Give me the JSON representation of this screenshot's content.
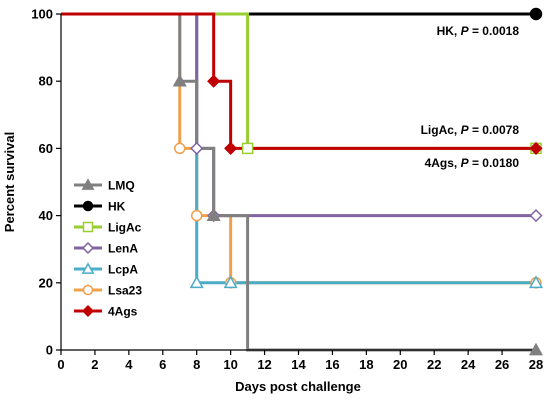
{
  "chart_data": {
    "type": "line",
    "step": true,
    "xlabel": "Days post challenge",
    "ylabel": "Percent survival",
    "xlim": [
      0,
      28
    ],
    "ylim": [
      0,
      100
    ],
    "xticks": [
      0,
      2,
      4,
      6,
      8,
      10,
      12,
      14,
      16,
      18,
      20,
      22,
      24,
      26,
      28
    ],
    "yticks": [
      0,
      20,
      40,
      60,
      80,
      100
    ],
    "grid": false,
    "legend_position": "bottom-left",
    "series": [
      {
        "name": "LMQ",
        "color": "#808080",
        "marker": "triangle",
        "filled": true,
        "points": [
          [
            0,
            100
          ],
          [
            7,
            100
          ],
          [
            7,
            80
          ],
          [
            8,
            80
          ],
          [
            8,
            60
          ],
          [
            9,
            60
          ],
          [
            9,
            40
          ],
          [
            11,
            40
          ],
          [
            11,
            0
          ],
          [
            28,
            0
          ]
        ],
        "marks": [
          [
            7,
            80
          ],
          [
            9,
            40
          ],
          [
            28,
            0
          ]
        ]
      },
      {
        "name": "HK",
        "color": "#000000",
        "marker": "circle",
        "filled": true,
        "points": [
          [
            0,
            100
          ],
          [
            28,
            100
          ]
        ],
        "marks": [
          [
            28,
            100
          ]
        ]
      },
      {
        "name": "LigAc",
        "color": "#9ACD32",
        "marker": "square",
        "filled": false,
        "points": [
          [
            0,
            100
          ],
          [
            11,
            100
          ],
          [
            11,
            60
          ],
          [
            28,
            60
          ]
        ],
        "marks": [
          [
            11,
            60
          ],
          [
            28,
            60
          ]
        ]
      },
      {
        "name": "LenA",
        "color": "#8064A2",
        "marker": "diamond",
        "filled": false,
        "points": [
          [
            0,
            100
          ],
          [
            8,
            100
          ],
          [
            8,
            60
          ],
          [
            9,
            60
          ],
          [
            9,
            40
          ],
          [
            28,
            40
          ]
        ],
        "marks": [
          [
            8,
            60
          ],
          [
            9,
            40
          ],
          [
            28,
            40
          ]
        ]
      },
      {
        "name": "LcpA",
        "color": "#4BACC6",
        "marker": "triangle",
        "filled": false,
        "points": [
          [
            0,
            100
          ],
          [
            8,
            100
          ],
          [
            8,
            20
          ],
          [
            10,
            20
          ],
          [
            28,
            20
          ]
        ],
        "marks": [
          [
            8,
            20
          ],
          [
            10,
            20
          ],
          [
            28,
            20
          ]
        ]
      },
      {
        "name": "Lsa23",
        "color": "#F0A04B",
        "marker": "circle",
        "filled": false,
        "points": [
          [
            0,
            100
          ],
          [
            7,
            100
          ],
          [
            7,
            60
          ],
          [
            8,
            60
          ],
          [
            8,
            40
          ],
          [
            10,
            40
          ],
          [
            10,
            20
          ],
          [
            28,
            20
          ]
        ],
        "marks": [
          [
            7,
            60
          ],
          [
            8,
            40
          ],
          [
            10,
            20
          ],
          [
            28,
            20
          ]
        ]
      },
      {
        "name": "4Ags",
        "color": "#C00000",
        "marker": "diamond",
        "filled": true,
        "points": [
          [
            0,
            100
          ],
          [
            9,
            100
          ],
          [
            9,
            80
          ],
          [
            10,
            80
          ],
          [
            10,
            60
          ],
          [
            28,
            60
          ]
        ],
        "marks": [
          [
            9,
            80
          ],
          [
            10,
            60
          ],
          [
            28,
            60
          ]
        ]
      }
    ],
    "annotations": [
      {
        "label": "HK, ",
        "p_label": "P",
        "value": " = 0.0018"
      },
      {
        "label": "LigAc, ",
        "p_label": "P",
        "value": " = 0.0078"
      },
      {
        "label": "4Ags, ",
        "p_label": "P",
        "value": " = 0.0180"
      }
    ]
  }
}
